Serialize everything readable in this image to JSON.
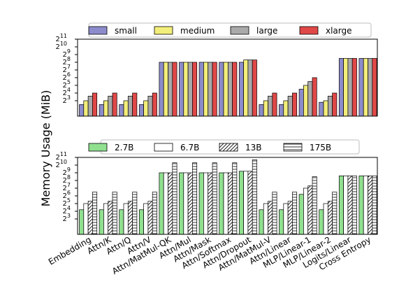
{
  "figure": {
    "ylabel": "Memory Usage (MiB)"
  },
  "chart_data": [
    {
      "type": "bar",
      "log_base": 2,
      "ylim_exp": [
        1,
        11
      ],
      "ytick_exps": [
        3,
        4,
        5,
        6,
        7,
        8,
        9,
        10,
        11
      ],
      "grid": false,
      "legend_placement": "top",
      "categories": [
        "Embedding",
        "Attn/K",
        "Attn/Q",
        "Attn/V",
        "Attn/MatMul-QK",
        "Attn/Mul",
        "Attn/Mask",
        "Attn/Softmax",
        "Attn/Dropout",
        "Attn/MatMul-V",
        "Attn/Linear",
        "MLP/Linear-1",
        "MLP/Linear-2",
        "Logits/Linear",
        "Cross Entropy"
      ],
      "series": [
        {
          "name": "small",
          "color": "#8c8ccc",
          "hatch": "none",
          "values": [
            2.5,
            2.5,
            2.5,
            2.5,
            8,
            8,
            8,
            8,
            8,
            2.5,
            2.5,
            4.5,
            2.8,
            8.5,
            8.5
          ]
        },
        {
          "name": "medium",
          "color": "#f2ee7a",
          "hatch": "none",
          "values": [
            3,
            3,
            3,
            3,
            8,
            8,
            8,
            8,
            8.3,
            3,
            3,
            5,
            3,
            8.5,
            8.5
          ]
        },
        {
          "name": "large",
          "color": "#aaaaaa",
          "hatch": "none",
          "values": [
            3.6,
            3.6,
            3.6,
            3.6,
            8,
            8,
            8,
            8,
            8.3,
            3.6,
            3.6,
            5.5,
            3.6,
            8.5,
            8.5
          ]
        },
        {
          "name": "xlarge",
          "color": "#e04848",
          "hatch": "none",
          "values": [
            4,
            4,
            4,
            4,
            8,
            8,
            8,
            8,
            8.3,
            4,
            4,
            6,
            4,
            8.5,
            8.5
          ]
        }
      ]
    },
    {
      "type": "bar",
      "log_base": 2,
      "ylim_exp": [
        1,
        11
      ],
      "ytick_exps": [
        3,
        4,
        5,
        6,
        7,
        8,
        9,
        10,
        11
      ],
      "grid": false,
      "legend_placement": "top",
      "categories": [
        "Embedding",
        "Attn/K",
        "Attn/Q",
        "Attn/V",
        "Attn/MatMul-QK",
        "Attn/Mul",
        "Attn/Mask",
        "Attn/Softmax",
        "Attn/Dropout",
        "Attn/MatMul-V",
        "Attn/Linear",
        "MLP/Linear-1",
        "MLP/Linear-2",
        "Logits/Linear",
        "Cross Entropy"
      ],
      "series": [
        {
          "name": "2.7B",
          "color": "#90e090",
          "hatch": "none",
          "values": [
            4.2,
            4.2,
            4.2,
            4.2,
            9,
            9,
            9,
            9,
            9.2,
            4.2,
            4.2,
            6.2,
            4.2,
            8.6,
            8.6
          ]
        },
        {
          "name": "6.7B",
          "color": "#ffffff",
          "hatch": "none",
          "values": [
            5,
            5,
            5,
            5,
            9,
            9,
            9,
            9,
            9.2,
            5,
            5,
            7,
            5,
            8.6,
            8.6
          ]
        },
        {
          "name": "13B",
          "color": "#ffffff",
          "hatch": "diag",
          "values": [
            5.3,
            5.3,
            5.3,
            5.3,
            9,
            9,
            9,
            9,
            9.2,
            5.3,
            5.3,
            7.3,
            5.3,
            8.6,
            8.6
          ]
        },
        {
          "name": "175B",
          "color": "#ffffff",
          "hatch": "horiz",
          "values": [
            6.5,
            6.5,
            6.5,
            6.5,
            10.3,
            10.3,
            10.3,
            10.3,
            10.7,
            6.5,
            6.5,
            8.5,
            6.5,
            8.6,
            8.6
          ]
        }
      ]
    }
  ]
}
